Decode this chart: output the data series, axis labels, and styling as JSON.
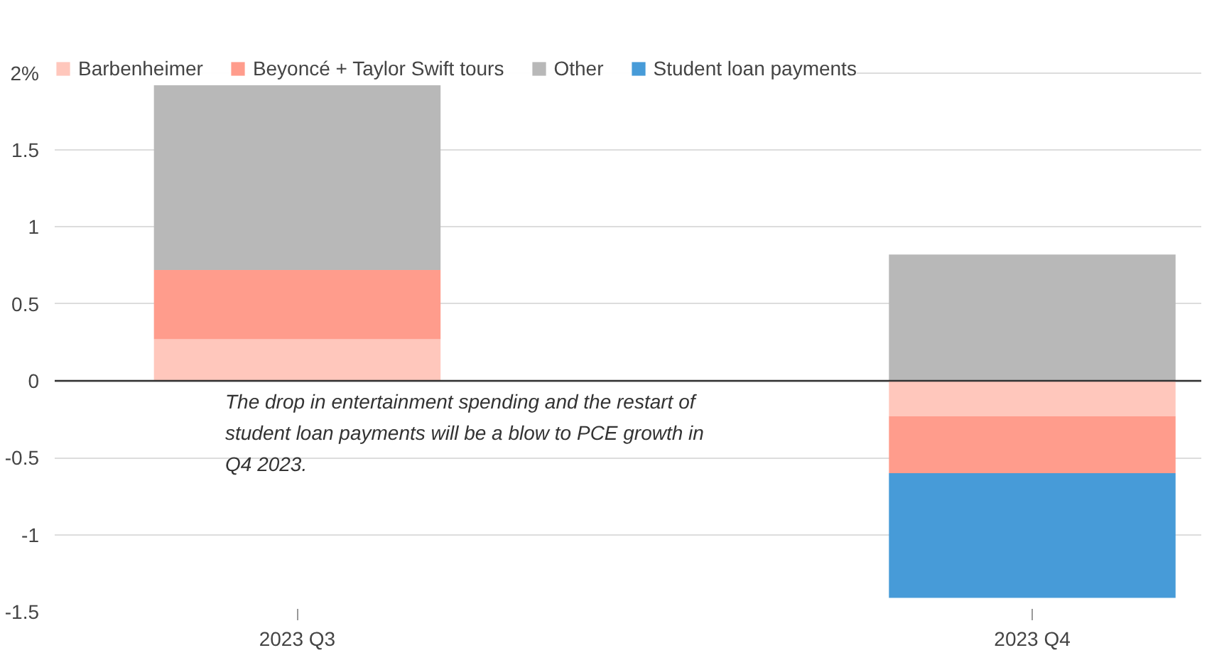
{
  "chart_data": {
    "type": "bar",
    "stacked": true,
    "categories": [
      "2023 Q3",
      "2023 Q4"
    ],
    "series": [
      {
        "name": "Barbenheimer",
        "color": "#ffc7bc",
        "values": [
          0.27,
          -0.23
        ]
      },
      {
        "name": "Beyoncé + Taylor Swift tours",
        "color": "#ff9c8c",
        "values": [
          0.45,
          -0.37
        ]
      },
      {
        "name": "Other",
        "color": "#b8b8b8",
        "values": [
          1.2,
          0.82
        ]
      },
      {
        "name": "Student loan payments",
        "color": "#479bd8",
        "values": [
          null,
          -0.81
        ]
      }
    ],
    "ylim": [
      -1.5,
      2.1
    ],
    "yticks": [
      {
        "value": 2,
        "label": "2%"
      },
      1.5,
      1,
      0.5,
      0,
      -0.5,
      -1,
      -1.5
    ],
    "grid": "y",
    "legend": "top",
    "ref_lines": [
      {
        "axis": "y",
        "value": 0,
        "color": "#333333"
      }
    ],
    "annotations": [
      "The drop in entertainment spending and the restart of student loan payments will be a blow to PCE growth in Q4 2023."
    ]
  }
}
